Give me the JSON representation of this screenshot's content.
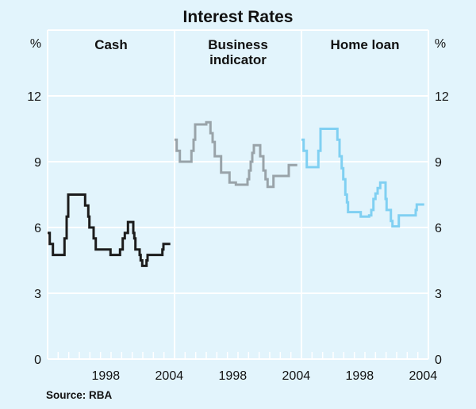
{
  "chart_data": {
    "type": "line",
    "title": "Interest Rates",
    "ylabel_left": "%",
    "ylabel_right": "%",
    "ylim": [
      0,
      15
    ],
    "yticks": [
      0,
      3,
      6,
      9,
      12
    ],
    "xlim": [
      1993,
      2005
    ],
    "xtick_labels": [
      "1998",
      "2004"
    ],
    "grid": true,
    "source": "Source: RBA",
    "colors": {
      "background": "#e2f4fc",
      "grid": "#ffffff"
    },
    "panels": [
      {
        "title": "Cash",
        "color": "#1c1c1c",
        "step_series": [
          [
            1993.0,
            5.75
          ],
          [
            1993.2,
            5.25
          ],
          [
            1993.5,
            4.75
          ],
          [
            1994.6,
            5.5
          ],
          [
            1994.8,
            6.5
          ],
          [
            1994.95,
            7.5
          ],
          [
            1996.55,
            7.0
          ],
          [
            1996.85,
            6.5
          ],
          [
            1996.95,
            6.0
          ],
          [
            1997.35,
            5.5
          ],
          [
            1997.55,
            5.0
          ],
          [
            1998.95,
            4.75
          ],
          [
            1999.85,
            5.0
          ],
          [
            2000.1,
            5.5
          ],
          [
            2000.3,
            5.75
          ],
          [
            2000.6,
            6.25
          ],
          [
            2001.1,
            5.75
          ],
          [
            2001.2,
            5.5
          ],
          [
            2001.3,
            5.0
          ],
          [
            2001.7,
            4.75
          ],
          [
            2001.8,
            4.5
          ],
          [
            2001.95,
            4.25
          ],
          [
            2002.35,
            4.5
          ],
          [
            2002.45,
            4.75
          ],
          [
            2003.85,
            5.0
          ],
          [
            2003.95,
            5.25
          ],
          [
            2004.6,
            5.25
          ]
        ]
      },
      {
        "title": "Business indicator",
        "title_lines": [
          "Business",
          "indicator"
        ],
        "color": "#99a3a9",
        "step_series": [
          [
            1993.0,
            10.0
          ],
          [
            1993.2,
            9.5
          ],
          [
            1993.5,
            9.0
          ],
          [
            1994.6,
            9.5
          ],
          [
            1994.8,
            10.0
          ],
          [
            1994.95,
            10.7
          ],
          [
            1996.0,
            10.8
          ],
          [
            1996.4,
            10.3
          ],
          [
            1996.6,
            9.9
          ],
          [
            1996.8,
            9.25
          ],
          [
            1997.4,
            8.5
          ],
          [
            1998.2,
            8.05
          ],
          [
            1998.8,
            7.95
          ],
          [
            1999.9,
            8.2
          ],
          [
            2000.05,
            8.6
          ],
          [
            2000.2,
            9.0
          ],
          [
            2000.35,
            9.4
          ],
          [
            2000.5,
            9.75
          ],
          [
            2001.1,
            9.25
          ],
          [
            2001.4,
            8.6
          ],
          [
            2001.6,
            8.2
          ],
          [
            2001.8,
            7.85
          ],
          [
            2002.35,
            8.35
          ],
          [
            2003.8,
            8.85
          ],
          [
            2004.6,
            8.85
          ]
        ]
      },
      {
        "title": "Home loan",
        "color": "#80d0f2",
        "step_series": [
          [
            1993.0,
            10.0
          ],
          [
            1993.2,
            9.5
          ],
          [
            1993.5,
            8.75
          ],
          [
            1994.6,
            9.5
          ],
          [
            1994.8,
            10.5
          ],
          [
            1996.4,
            10.0
          ],
          [
            1996.6,
            9.25
          ],
          [
            1996.8,
            8.7
          ],
          [
            1996.95,
            8.2
          ],
          [
            1997.15,
            7.5
          ],
          [
            1997.3,
            7.15
          ],
          [
            1997.4,
            6.7
          ],
          [
            1998.6,
            6.5
          ],
          [
            1999.4,
            6.55
          ],
          [
            1999.6,
            6.8
          ],
          [
            1999.8,
            7.3
          ],
          [
            2000.0,
            7.55
          ],
          [
            2000.2,
            7.8
          ],
          [
            2000.45,
            8.05
          ],
          [
            2000.95,
            7.3
          ],
          [
            2001.05,
            6.8
          ],
          [
            2001.45,
            6.3
          ],
          [
            2001.6,
            6.05
          ],
          [
            2002.2,
            6.55
          ],
          [
            2003.8,
            6.8
          ],
          [
            2003.9,
            7.05
          ],
          [
            2004.6,
            7.05
          ]
        ]
      }
    ]
  }
}
